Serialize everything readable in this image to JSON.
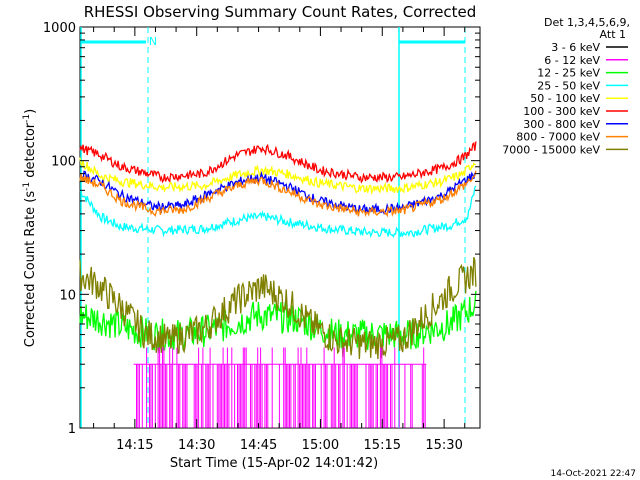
{
  "chart_data": {
    "type": "line",
    "title": "RHESSI Observing Summary Count Rates, Corrected",
    "xlabel": "Start Time (15-Apr-02 14:01:42)",
    "ylabel": "Corrected Count Rate (s-1 detector-1)",
    "yscale": "log",
    "ylim": [
      1,
      1000
    ],
    "xlim_minutes": [
      0,
      97
    ],
    "xticks": [
      {
        "minute": 13.3,
        "label": "14:15"
      },
      {
        "minute": 28.3,
        "label": "14:30"
      },
      {
        "minute": 43.3,
        "label": "14:45"
      },
      {
        "minute": 58.3,
        "label": "15:00"
      },
      {
        "minute": 73.3,
        "label": "15:15"
      },
      {
        "minute": 88.3,
        "label": "15:30"
      }
    ],
    "yticks": [
      {
        "value": 1,
        "label": "1"
      },
      {
        "value": 10,
        "label": "10"
      },
      {
        "value": 100,
        "label": "100"
      },
      {
        "value": 1000,
        "label": "1000"
      }
    ],
    "legend_header": [
      "Det 1,3,4,5,6,9,",
      "Att 1"
    ],
    "series": [
      {
        "name": "3 - 6 keV",
        "color": "#000000",
        "values": []
      },
      {
        "name": "6 - 12 keV",
        "color": "#ff00ff",
        "minutes": [
          13,
          84
        ],
        "values": [
          1.5,
          3.0
        ]
      },
      {
        "name": "12 - 25 keV",
        "color": "#00ff00",
        "minutes": [
          0,
          5,
          12,
          18,
          25,
          33,
          43,
          53,
          62,
          70,
          80,
          90,
          96
        ],
        "values": [
          7.0,
          6.5,
          5.5,
          5.0,
          5.0,
          5.5,
          7.0,
          6.5,
          5.0,
          5.0,
          5.0,
          6.0,
          8.5
        ]
      },
      {
        "name": "25 - 50 keV",
        "color": "#00ffff",
        "minutes": [
          0,
          5,
          10,
          20,
          30,
          40,
          45,
          50,
          60,
          70,
          80,
          90,
          94,
          96
        ],
        "values": [
          60,
          38,
          32,
          30,
          31,
          37,
          38,
          35,
          31,
          29,
          29,
          33,
          38,
          65
        ]
      },
      {
        "name": "50 - 100 keV",
        "color": "#ffff00",
        "minutes": [
          0,
          5,
          10,
          20,
          30,
          38,
          44,
          50,
          58,
          68,
          78,
          88,
          93,
          96
        ],
        "values": [
          100,
          77,
          70,
          63,
          65,
          78,
          85,
          80,
          68,
          62,
          62,
          70,
          80,
          100
        ]
      },
      {
        "name": "100 - 300 keV",
        "color": "#ff0000",
        "minutes": [
          0,
          5,
          10,
          20,
          30,
          38,
          44,
          50,
          58,
          68,
          78,
          88,
          93,
          96
        ],
        "values": [
          125,
          110,
          90,
          75,
          80,
          110,
          125,
          110,
          85,
          75,
          75,
          88,
          105,
          130
        ]
      },
      {
        "name": "300 - 800 keV",
        "color": "#0000ff",
        "minutes": [
          0,
          5,
          10,
          18,
          25,
          33,
          40,
          44,
          50,
          58,
          68,
          78,
          88,
          93,
          96
        ],
        "values": [
          80,
          70,
          55,
          45,
          46,
          60,
          72,
          75,
          65,
          50,
          43,
          44,
          55,
          70,
          80
        ]
      },
      {
        "name": "800 - 7000 keV",
        "color": "#ff8000",
        "minutes": [
          0,
          5,
          10,
          18,
          25,
          33,
          40,
          44,
          50,
          58,
          68,
          78,
          88,
          93,
          96
        ],
        "values": [
          75,
          65,
          50,
          42,
          43,
          56,
          68,
          72,
          60,
          47,
          41,
          42,
          52,
          65,
          78
        ]
      },
      {
        "name": "7000 - 15000 keV",
        "color": "#808000",
        "minutes": [
          0,
          4,
          10,
          16,
          22,
          30,
          38,
          44,
          50,
          56,
          62,
          70,
          78,
          84,
          90,
          96
        ],
        "values": [
          14,
          12,
          8,
          5,
          4.5,
          5.5,
          9,
          11.5,
          9,
          6,
          4.5,
          4.2,
          4.5,
          7,
          11,
          15
        ]
      }
    ],
    "annotations": [
      {
        "label": "N",
        "color": "#00ffff"
      }
    ],
    "footer_stamp": "14-Oct-2021 22:47"
  }
}
